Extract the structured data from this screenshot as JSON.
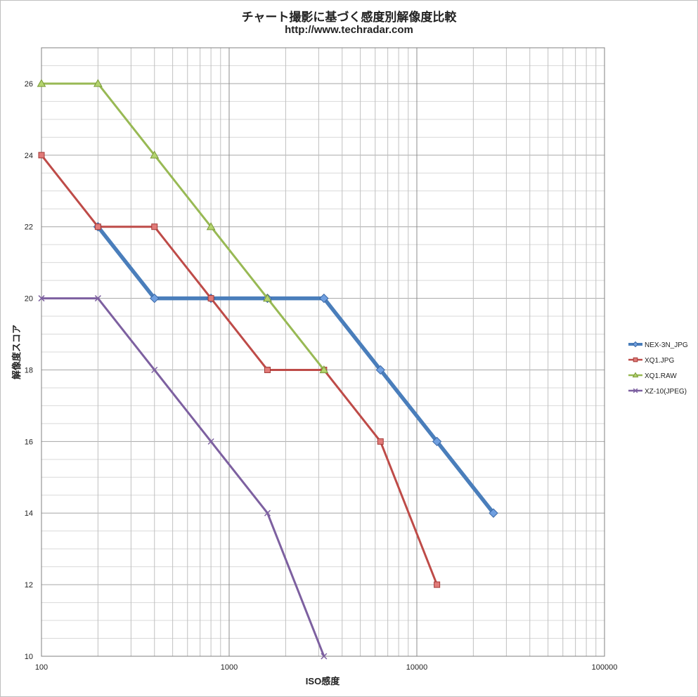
{
  "chart_data": {
    "type": "line",
    "title": "チャート撮影に基づく感度別解像度比較",
    "subtitle": "http://www.techradar.com",
    "xlabel": "ISO感度",
    "ylabel": "解像度スコア",
    "x_scale": "log",
    "xlim": [
      100,
      100000
    ],
    "ylim": [
      10,
      27
    ],
    "x_ticks": [
      100,
      1000,
      10000,
      100000
    ],
    "x_tick_labels": [
      "100",
      "1000",
      "10000",
      "100000"
    ],
    "y_ticks": [
      10,
      12,
      14,
      16,
      18,
      20,
      22,
      24,
      26
    ],
    "y_tick_labels": [
      "10",
      "12",
      "14",
      "16",
      "18",
      "20",
      "22",
      "24",
      "26"
    ],
    "grid": true,
    "legend_position": "right",
    "series": [
      {
        "name": "NEX-3N_JPG",
        "color": "#4a7ebb",
        "marker": "diamond",
        "x": [
          200,
          400,
          800,
          1600,
          3200,
          6400,
          12800,
          25600
        ],
        "y": [
          22,
          20,
          20,
          20,
          20,
          18,
          16,
          14
        ]
      },
      {
        "name": "XQ1.JPG",
        "color": "#be4b48",
        "marker": "square",
        "x": [
          100,
          200,
          400,
          800,
          1600,
          3200,
          6400,
          12800
        ],
        "y": [
          24,
          22,
          22,
          20,
          18,
          18,
          16,
          12
        ]
      },
      {
        "name": "XQ1.RAW",
        "color": "#98b954",
        "marker": "triangle",
        "x": [
          100,
          200,
          400,
          800,
          1600,
          3200
        ],
        "y": [
          26,
          26,
          24,
          22,
          20,
          18
        ]
      },
      {
        "name": "XZ-10(JPEG)",
        "color": "#7d60a0",
        "marker": "x",
        "x": [
          100,
          200,
          400,
          800,
          1600,
          3200
        ],
        "y": [
          20,
          20,
          18,
          16,
          14,
          10
        ]
      }
    ]
  }
}
